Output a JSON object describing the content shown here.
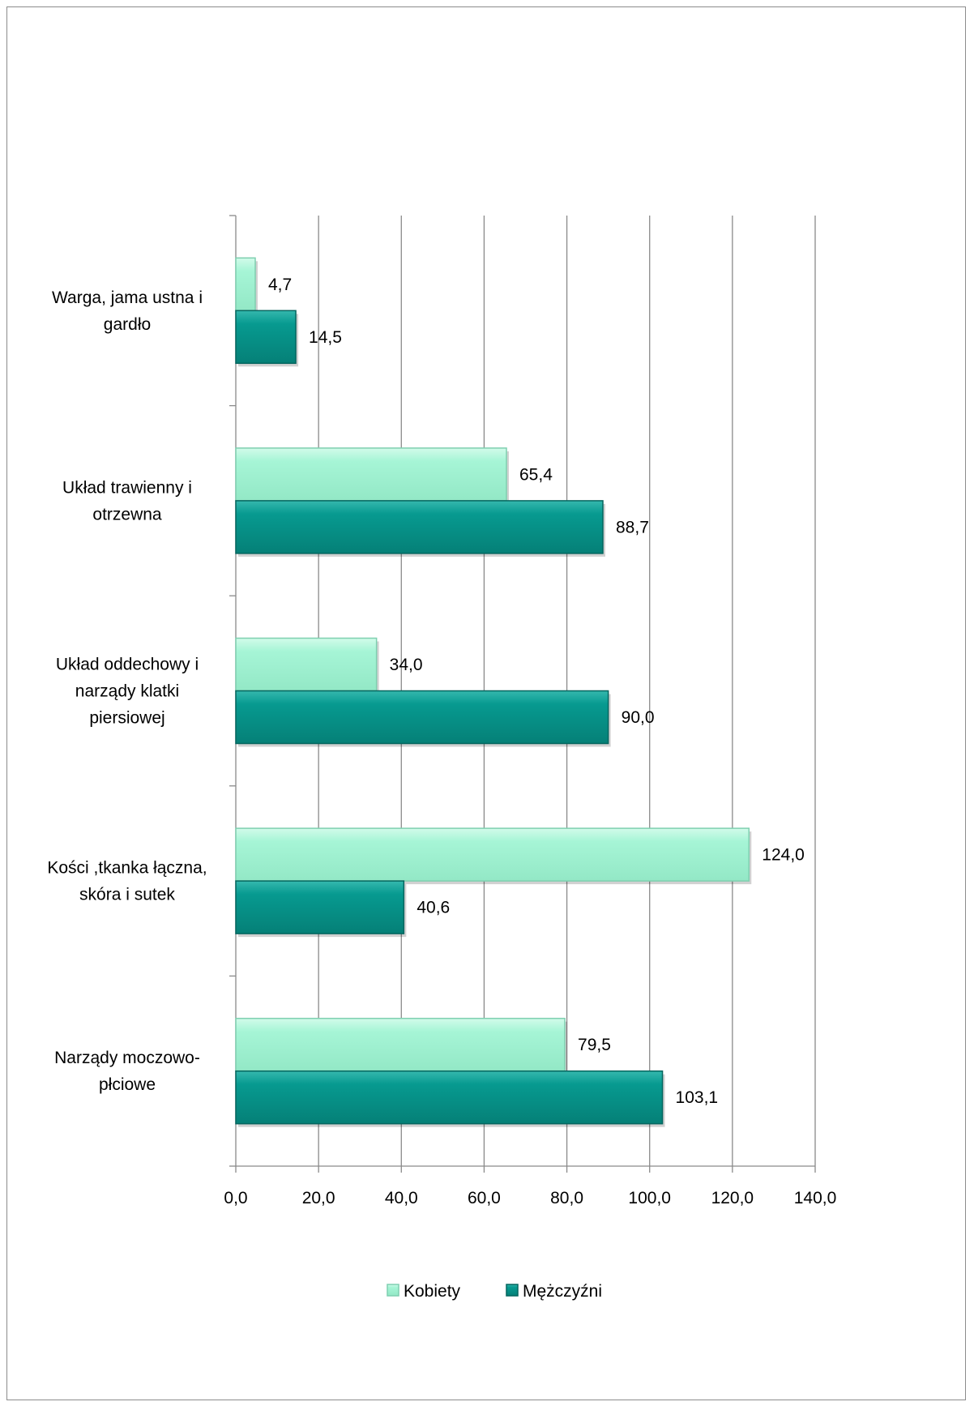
{
  "chart_data": {
    "type": "bar",
    "orientation": "horizontal",
    "categories": [
      [
        "Warga, jama ustna i",
        "gardło"
      ],
      [
        "Układ trawienny i",
        "otrzewna"
      ],
      [
        "Układ oddechowy i",
        "narządy klatki",
        "piersiowej"
      ],
      [
        "Kości ,tkanka łączna,",
        "skóra i sutek"
      ],
      [
        "Narządy moczowo-",
        "płciowe"
      ]
    ],
    "series": [
      {
        "name": "Kobiety",
        "values": [
          4.7,
          65.4,
          34.0,
          124.0,
          79.5
        ],
        "labels": [
          "4,7",
          "65,4",
          "34,0",
          "124,0",
          "79,5"
        ],
        "color": "#a6f5d6",
        "edge": "#7fcfb0"
      },
      {
        "name": "Mężczyźni",
        "values": [
          14.5,
          88.7,
          90.0,
          40.6,
          103.1
        ],
        "labels": [
          "14,5",
          "88,7",
          "90,0",
          "40,6",
          "103,1"
        ],
        "color": "#079a90",
        "edge": "#05665f"
      }
    ],
    "xlim": [
      0,
      140
    ],
    "xticks": [
      0,
      20,
      40,
      60,
      80,
      100,
      120,
      140
    ],
    "xtick_labels": [
      "0,0",
      "20,0",
      "40,0",
      "60,0",
      "80,0",
      "100,0",
      "120,0",
      "140,0"
    ],
    "grid": true,
    "legend_position": "bottom",
    "title": "",
    "xlabel": "",
    "ylabel": ""
  }
}
